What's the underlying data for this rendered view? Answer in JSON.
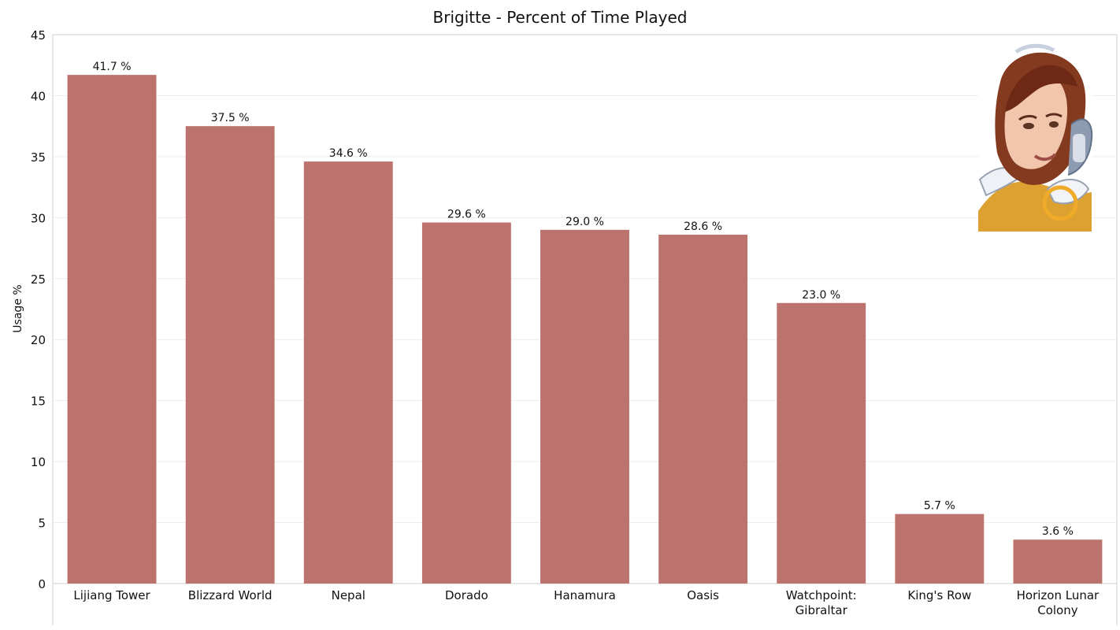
{
  "chart_data": {
    "type": "bar",
    "title": "Brigitte - Percent of Time Played",
    "xlabel": "",
    "ylabel": "Usage %",
    "ylim": [
      0,
      45
    ],
    "yticks": [
      0,
      5,
      10,
      15,
      20,
      25,
      30,
      35,
      40,
      45
    ],
    "categories": [
      "Lijiang Tower",
      "Blizzard World",
      "Nepal",
      "Dorado",
      "Hanamura",
      "Oasis",
      "Watchpoint: Gibraltar",
      "King's Row",
      "Horizon Lunar Colony"
    ],
    "values": [
      41.7,
      37.5,
      34.6,
      29.6,
      29.0,
      28.6,
      23.0,
      5.7,
      3.6
    ],
    "data_labels": [
      "41.7 %",
      "37.5 %",
      "34.6 %",
      "29.6 %",
      "29.0 %",
      "28.6 %",
      "23.0 %",
      "5.7 %",
      "3.6 %"
    ],
    "grid": true,
    "legend": "none",
    "bar_color": "#bd736d",
    "grid_color": "#eeeeee",
    "axis_color": "#cfcfcf",
    "portrait_icon": "brigitte-portrait"
  }
}
